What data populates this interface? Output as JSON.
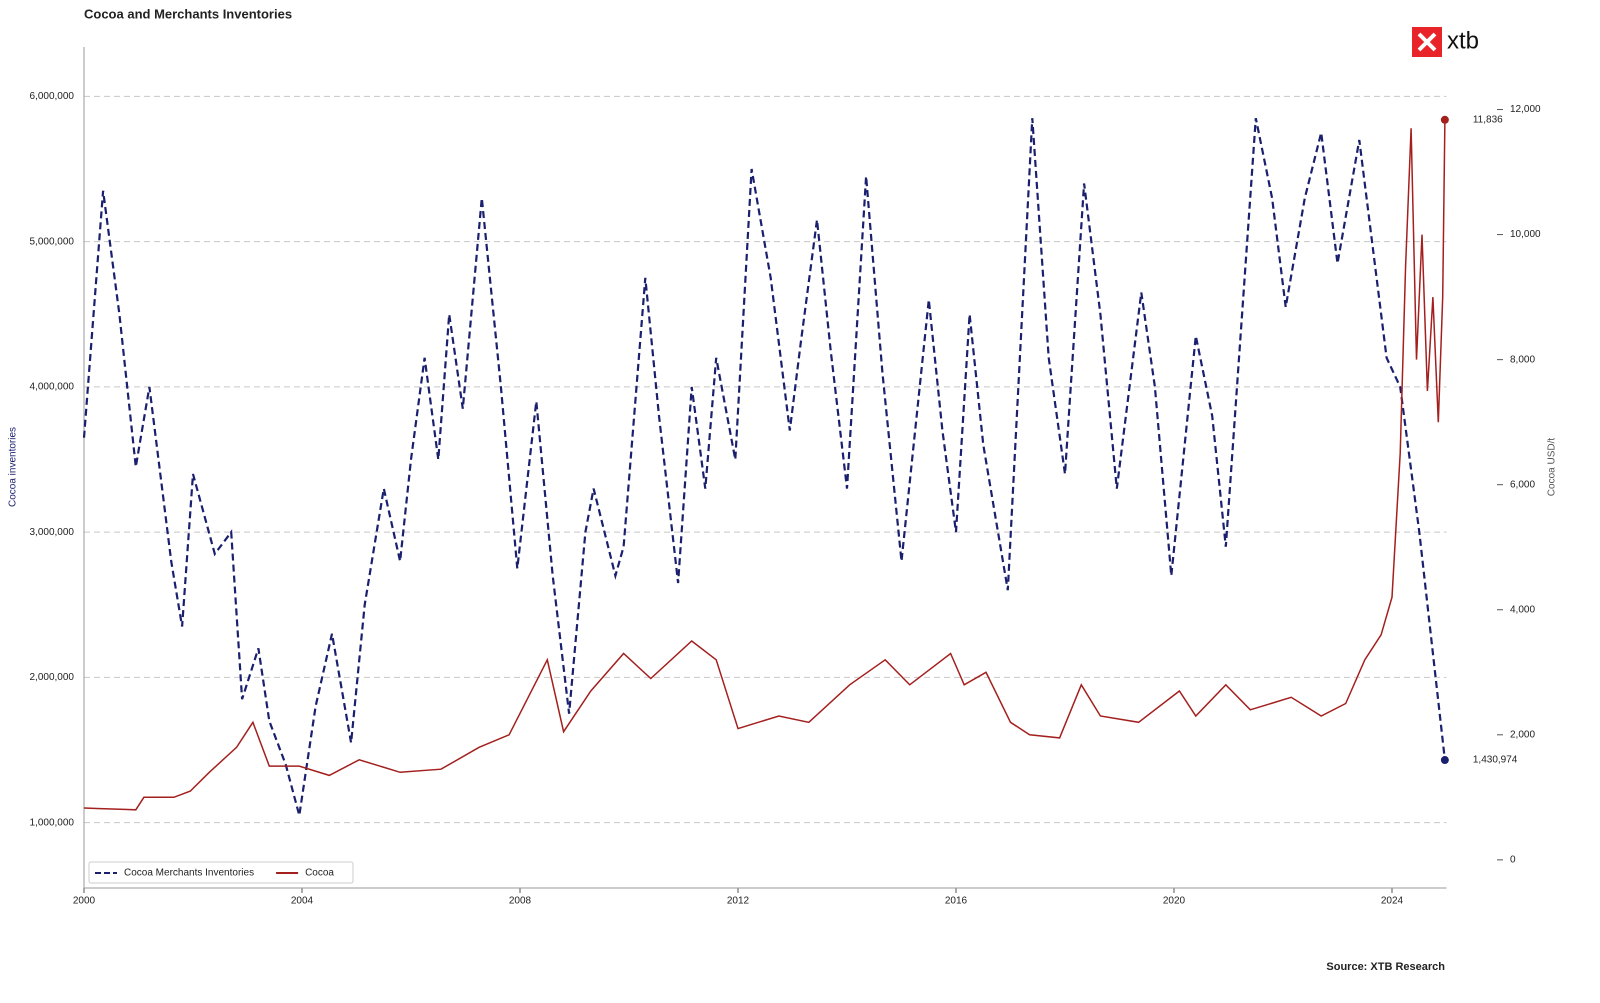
{
  "chart_data": {
    "type": "line",
    "title": "Cocoa and Merchants Inventories",
    "source": "Source: XTB Research",
    "logo": "xtb",
    "ylabel": "Cocoa inventories",
    "y2label": "Cocoa USD/t",
    "xlim": [
      2000,
      2025
    ],
    "xticks": [
      2000,
      2004,
      2008,
      2012,
      2016,
      2020,
      2024
    ],
    "ylim": [
      550000,
      6340000
    ],
    "yticks": [
      {
        "value": 1000000,
        "label": "1,000,000"
      },
      {
        "value": 2000000,
        "label": "2,000,000"
      },
      {
        "value": 3000000,
        "label": "3,000,000"
      },
      {
        "value": 4000000,
        "label": "4,000,000"
      },
      {
        "value": 5000000,
        "label": "5,000,000"
      },
      {
        "value": 6000000,
        "label": "6,000,000"
      }
    ],
    "y2lim": [
      -450,
      13000
    ],
    "y2ticks": [
      0,
      {
        "value": 2000,
        "label": "2,000"
      },
      {
        "value": 4000,
        "label": "4,000"
      },
      {
        "value": 6000,
        "label": "6,000"
      },
      {
        "value": 8000,
        "label": "8,000"
      },
      {
        "value": 10000,
        "label": "10,000"
      },
      {
        "value": 12000,
        "label": "12,000"
      }
    ],
    "grid": true,
    "legend": "lower left",
    "series": [
      {
        "name": "Cocoa Merchants Inventories",
        "color": "#1a1f6e",
        "style": "dashed",
        "end_label": "1,430,974",
        "x": [
          2000,
          2000.35,
          2000.65,
          2000.95,
          2001.2,
          2001.6,
          2001.8,
          2002.0,
          2002.4,
          2002.7,
          2002.9,
          2003.2,
          2003.4,
          2003.7,
          2003.95,
          2004.25,
          2004.55,
          2004.9,
          2005.15,
          2005.5,
          2005.8,
          2006.0,
          2006.25,
          2006.5,
          2006.7,
          2006.95,
          2007.3,
          2007.65,
          2007.95,
          2008.3,
          2008.6,
          2008.9,
          2009.2,
          2009.35,
          2009.75,
          2009.9,
          2010.3,
          2010.55,
          2010.9,
          2011.15,
          2011.4,
          2011.6,
          2011.95,
          2012.25,
          2012.6,
          2012.95,
          2013.15,
          2013.45,
          2013.7,
          2014.0,
          2014.35,
          2014.65,
          2015.0,
          2015.5,
          2015.75,
          2016.0,
          2016.25,
          2016.5,
          2016.95,
          2017.4,
          2017.7,
          2018.0,
          2018.35,
          2018.65,
          2018.95,
          2019.4,
          2019.65,
          2019.95,
          2020.4,
          2020.7,
          2020.95,
          2021.5,
          2021.8,
          2022.05,
          2022.4,
          2022.7,
          2023.0,
          2023.4,
          2023.9,
          2024.15,
          2024.5,
          2024.8,
          2024.97
        ],
        "values": [
          3650000,
          5350000,
          4500000,
          3450000,
          4000000,
          2800000,
          2350000,
          3400000,
          2850000,
          3000000,
          1850000,
          2200000,
          1700000,
          1400000,
          1050000,
          1800000,
          2300000,
          1550000,
          2500000,
          3300000,
          2800000,
          3500000,
          4200000,
          3500000,
          4500000,
          3850000,
          5300000,
          4000000,
          2750000,
          3900000,
          2700000,
          1750000,
          3000000,
          3300000,
          2700000,
          2900000,
          4750000,
          3800000,
          2650000,
          4000000,
          3300000,
          4200000,
          3500000,
          5500000,
          4750000,
          3700000,
          4300000,
          5150000,
          4250000,
          3300000,
          5450000,
          4100000,
          2800000,
          4600000,
          3700000,
          3000000,
          4500000,
          3600000,
          2600000,
          5850000,
          4200000,
          3400000,
          5400000,
          4500000,
          3300000,
          4650000,
          4000000,
          2700000,
          4350000,
          3800000,
          2900000,
          5850000,
          5300000,
          4550000,
          5300000,
          5750000,
          4850000,
          5700000,
          4200000,
          4000000,
          3000000,
          2000000,
          1430974
        ]
      },
      {
        "name": "Cocoa",
        "color": "#a3201e",
        "style": "solid",
        "axis": "y2",
        "end_label": "11,836",
        "x": [
          2000,
          2000.3,
          2000.95,
          2001.1,
          2001.65,
          2001.95,
          2002.3,
          2002.8,
          2003.1,
          2003.4,
          2003.95,
          2004.5,
          2005.05,
          2005.8,
          2006.55,
          2007.25,
          2007.8,
          2008.15,
          2008.5,
          2008.8,
          2009.3,
          2009.9,
          2010.4,
          2011.15,
          2011.6,
          2012.0,
          2012.75,
          2013.3,
          2014.05,
          2014.7,
          2015.15,
          2015.9,
          2016.15,
          2016.55,
          2017.0,
          2017.35,
          2017.9,
          2018.3,
          2018.65,
          2019.35,
          2020.1,
          2020.4,
          2020.95,
          2021.4,
          2022.15,
          2022.7,
          2023.15,
          2023.5,
          2023.8,
          2024.0,
          2024.15,
          2024.25,
          2024.35,
          2024.45,
          2024.55,
          2024.65,
          2024.75,
          2024.85,
          2024.93,
          2024.97
        ],
        "values": [
          830,
          820,
          800,
          1000,
          1000,
          1100,
          1400,
          1800,
          2200,
          1500,
          1500,
          1350,
          1600,
          1400,
          1450,
          1800,
          2000,
          2600,
          3200,
          2050,
          2700,
          3300,
          2900,
          3500,
          3200,
          2100,
          2300,
          2200,
          2800,
          3200,
          2800,
          3300,
          2800,
          3000,
          2200,
          2000,
          1950,
          2800,
          2300,
          2200,
          2700,
          2300,
          2800,
          2400,
          2600,
          2300,
          2500,
          3200,
          3600,
          4200,
          6500,
          9500,
          11700,
          8000,
          10000,
          7500,
          9000,
          7000,
          9000,
          11836
        ]
      }
    ]
  }
}
